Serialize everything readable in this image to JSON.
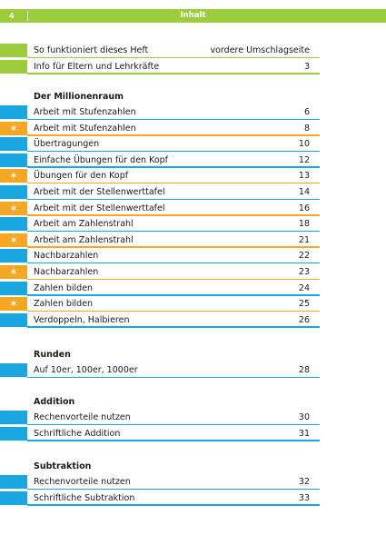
{
  "header": {
    "page_number": "4",
    "title": "Inhalt"
  },
  "colors": {
    "green": "#9ccb3b",
    "blue": "#1aa6e0",
    "orange": "#f5a623"
  },
  "intro": [
    {
      "label": "So funktioniert dieses Heft",
      "page": "vordere Umschlagseite",
      "color": "green"
    },
    {
      "label": "Info für Eltern und Lehrkräfte",
      "page": "3",
      "color": "green"
    }
  ],
  "sections": [
    {
      "title": "Der Millionenraum",
      "items": [
        {
          "label": "Arbeit mit Stufenzahlen",
          "page": "6",
          "color": "blue",
          "star": false
        },
        {
          "label": "Arbeit mit Stufenzahlen",
          "page": "8",
          "color": "orange",
          "star": true
        },
        {
          "label": "Übertragungen",
          "page": "10",
          "color": "blue",
          "star": false
        },
        {
          "label": "Einfache Übungen für den Kopf",
          "page": "12",
          "color": "blue",
          "star": false
        },
        {
          "label": "Übungen für den Kopf",
          "page": "13",
          "color": "orange",
          "star": true
        },
        {
          "label": "Arbeit mit der Stellenwerttafel",
          "page": "14",
          "color": "blue",
          "star": false
        },
        {
          "label": "Arbeit mit der Stellenwerttafel",
          "page": "16",
          "color": "orange",
          "star": true
        },
        {
          "label": "Arbeit am Zahlenstrahl",
          "page": "18",
          "color": "blue",
          "star": false
        },
        {
          "label": "Arbeit am Zahlenstrahl",
          "page": "21",
          "color": "orange",
          "star": true
        },
        {
          "label": "Nachbarzahlen",
          "page": "22",
          "color": "blue",
          "star": false
        },
        {
          "label": "Nachbarzahlen",
          "page": "23",
          "color": "orange",
          "star": true
        },
        {
          "label": "Zahlen bilden",
          "page": "24",
          "color": "blue",
          "star": false
        },
        {
          "label": "Zahlen bilden",
          "page": "25",
          "color": "orange",
          "star": true
        },
        {
          "label": "Verdoppeln, Halbieren",
          "page": "26",
          "color": "blue",
          "star": false
        }
      ]
    },
    {
      "title": "Runden",
      "items": [
        {
          "label": "Auf 10er, 100er, 1000er",
          "page": "28",
          "color": "blue",
          "star": false
        }
      ]
    },
    {
      "title": "Addition",
      "items": [
        {
          "label": "Rechenvorteile nutzen",
          "page": "30",
          "color": "blue",
          "star": false
        },
        {
          "label": "Schriftliche Addition",
          "page": "31",
          "color": "blue",
          "star": false
        }
      ]
    },
    {
      "title": "Subtraktion",
      "items": [
        {
          "label": "Rechenvorteile nutzen",
          "page": "32",
          "color": "blue",
          "star": false
        },
        {
          "label": "Schriftliche Subtraktion",
          "page": "33",
          "color": "blue",
          "star": false
        }
      ]
    }
  ],
  "star_glyph": "✶"
}
